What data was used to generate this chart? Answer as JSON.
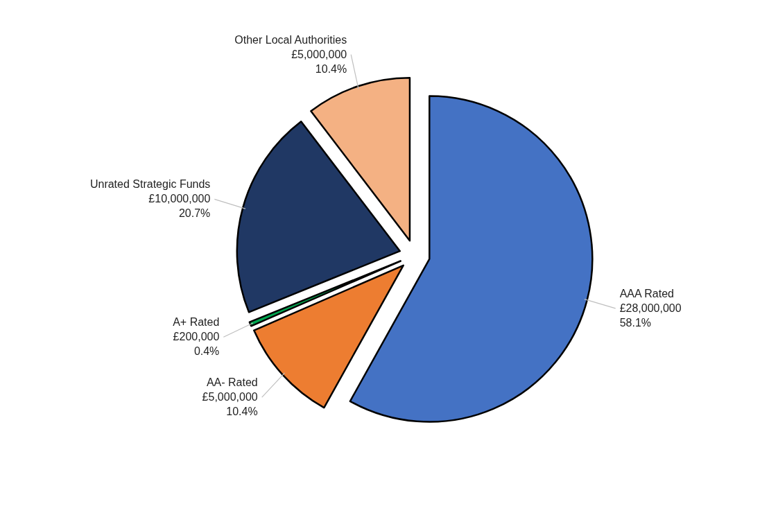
{
  "chart_data": {
    "type": "pie",
    "categories": [
      "AAA Rated",
      "AA- Rated",
      "A+ Rated",
      "Unrated Strategic Funds",
      "Other Local Authorities"
    ],
    "values": [
      28000000,
      5000000,
      200000,
      10000000,
      5000000
    ],
    "colors": [
      "#4472c4",
      "#ed7d31",
      "#00a650",
      "#203864",
      "#f4b183"
    ],
    "value_labels": [
      "£28,000,000\n58.1%",
      "£5,000,000\n10.4%",
      "£200,000\n0.4%",
      "£10,000,000\n20.7%",
      "£5,000,000\n10.4%"
    ]
  }
}
